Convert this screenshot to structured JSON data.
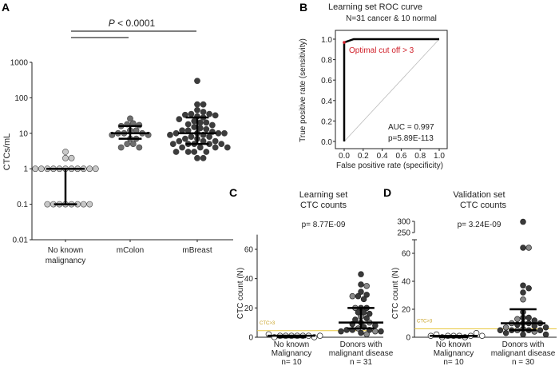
{
  "chart_data": [
    {
      "panel": "A",
      "type": "scatter",
      "title": "",
      "ylabel": "CTCs/mL",
      "yscale": "log",
      "ylim": [
        0.01,
        1000
      ],
      "yticks": [
        "0.01",
        "0.1",
        "1",
        "10",
        "100",
        "1000"
      ],
      "categories": [
        "No known\nmalignancy",
        "mColon",
        "mBreast"
      ],
      "category_lines": [
        [
          "No known",
          "malignancy"
        ],
        [
          "mColon"
        ],
        [
          "mBreast"
        ]
      ],
      "annotation": {
        "p_italic": "P",
        "p_rest": " < 0.0001"
      },
      "groups": [
        {
          "values": [
            3,
            2,
            2,
            1,
            1,
            1,
            1,
            1,
            1,
            1,
            1,
            1,
            1,
            1,
            0.1,
            0.1,
            0.1,
            0.1,
            0.1,
            0.1,
            0.1,
            0.1
          ],
          "median": 1,
          "q1": 0.1,
          "q3": 1,
          "color": "#c8c8c8"
        },
        {
          "values": [
            26,
            19,
            18,
            17,
            16,
            12,
            12,
            10,
            10,
            10,
            9,
            9,
            7,
            7,
            5,
            5,
            4,
            4
          ],
          "median": 10,
          "q1": 7,
          "q3": 16,
          "color": "#6e6e6e"
        },
        {
          "values": [
            300,
            65,
            65,
            45,
            40,
            35,
            35,
            33,
            32,
            30,
            28,
            25,
            22,
            20,
            20,
            18,
            17,
            15,
            14,
            13,
            12,
            12,
            11,
            10,
            10,
            10,
            10,
            9,
            9,
            8,
            8,
            7,
            7,
            6,
            6,
            6,
            5,
            5,
            5,
            5,
            5,
            4,
            4,
            4,
            4,
            3,
            3,
            3,
            3,
            2,
            2
          ],
          "median": 10,
          "q1": 5,
          "q3": 28,
          "color": "#3c3c3c"
        }
      ]
    },
    {
      "panel": "B",
      "type": "line",
      "title": "Learning set ROC curve",
      "subtitle": "N=31 cancer & 10 normal",
      "xlabel": "False positive rate (specificity)",
      "ylabel": "True positive rate (sensitivity)",
      "xlim": [
        0,
        1
      ],
      "ylim": [
        0,
        1
      ],
      "ticks": [
        "0.0",
        "0.2",
        "0.4",
        "0.6",
        "0.8",
        "1.0"
      ],
      "roc": {
        "x": [
          0,
          0,
          0.1,
          1.0
        ],
        "y": [
          0,
          0.968,
          1.0,
          1.0
        ]
      },
      "diagonal": {
        "x": [
          0,
          1
        ],
        "y": [
          0,
          1
        ]
      },
      "annotations": {
        "cutoff": "Optimal cut off > 3",
        "auc": "AUC = 0.997",
        "p": "p=5.89E-113"
      },
      "cutoff_color": "#d0202a"
    },
    {
      "panel": "C",
      "type": "scatter",
      "title_lines": [
        "Learning set",
        "CTC counts"
      ],
      "pvalue": "p= 8.77E-09",
      "ylabel": "CTC count (N)",
      "ylim": [
        0,
        70
      ],
      "yticks": [
        "0",
        "20",
        "40",
        "60"
      ],
      "threshold": {
        "value": 4.5,
        "label": "CTC>3",
        "color": "#e8c840"
      },
      "categories": [
        [
          "No known",
          "Malignancy",
          "n= 10"
        ],
        [
          "Donors with",
          "malignant disease",
          "n = 31"
        ]
      ],
      "groups": [
        {
          "values": [
            1,
            1,
            1,
            1,
            1,
            1,
            0,
            0,
            2,
            1
          ],
          "median": 1,
          "q1": 0,
          "q3": 1,
          "color": "#ffffff"
        },
        {
          "values": [
            43,
            36,
            35,
            31,
            29,
            28,
            28,
            26,
            20,
            20,
            20,
            17,
            17,
            16,
            14,
            13,
            12,
            10,
            10,
            9,
            8,
            7,
            6,
            5,
            5,
            5,
            4,
            4,
            4,
            3,
            2
          ],
          "median": 10,
          "q1": 6,
          "q3": 20,
          "color": "#3a3a3a",
          "alt_color": "#8a8a8a"
        }
      ]
    },
    {
      "panel": "D",
      "type": "scatter",
      "title_lines": [
        "Validation set",
        "CTC counts"
      ],
      "pvalue": "p= 3.24E-09",
      "ylabel": "CTC count (N)",
      "ylim": [
        0,
        70
      ],
      "axis_break": [
        250,
        300
      ],
      "yticks": [
        "0",
        "20",
        "40",
        "60",
        "250",
        "300"
      ],
      "threshold": {
        "value": 6,
        "label": "CTC>3",
        "color": "#e8c840"
      },
      "categories": [
        [
          "No known",
          "Malignancy",
          "n= 10"
        ],
        [
          "Donors with",
          "malignant disease",
          "n = 30"
        ]
      ],
      "groups": [
        {
          "values": [
            1,
            1,
            1,
            0,
            0,
            1,
            2,
            3,
            1,
            1
          ],
          "median": 1,
          "q1": 0,
          "q3": 1,
          "color": "#ffffff"
        },
        {
          "values": [
            298,
            64,
            64,
            37,
            35,
            32,
            27,
            18,
            14,
            14,
            13,
            12,
            10,
            10,
            10,
            10,
            9,
            8,
            7,
            7,
            6,
            5,
            5,
            5,
            5,
            5,
            4,
            3,
            2,
            2
          ],
          "median": 10,
          "q1": 5,
          "q3": 20,
          "color": "#3a3a3a",
          "alt_color": "#8a8a8a"
        }
      ]
    }
  ],
  "panel_labels": [
    "A",
    "B",
    "C",
    "D"
  ]
}
